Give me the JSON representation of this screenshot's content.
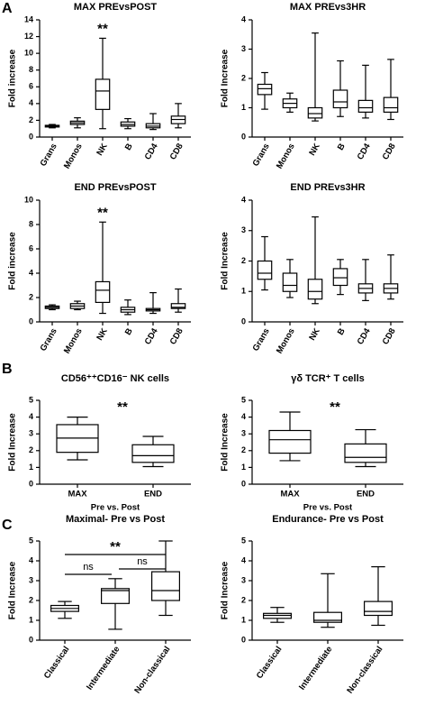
{
  "chart_data": [
    {
      "type": "box",
      "panel": "A",
      "title": "MAX PREvsPOST",
      "ylabel": "Fold increase",
      "categories": [
        "Grans",
        "Monos",
        "NK",
        "B",
        "CD4",
        "CD8"
      ],
      "boxes": [
        {
          "min": 1.1,
          "q1": 1.2,
          "median": 1.3,
          "q3": 1.4,
          "max": 1.5
        },
        {
          "min": 1.1,
          "q1": 1.5,
          "median": 1.7,
          "q3": 1.9,
          "max": 2.3
        },
        {
          "min": 1.0,
          "q1": 3.3,
          "median": 5.5,
          "q3": 6.9,
          "max": 11.8
        },
        {
          "min": 1.0,
          "q1": 1.3,
          "median": 1.5,
          "q3": 1.8,
          "max": 2.2
        },
        {
          "min": 0.9,
          "q1": 1.1,
          "median": 1.3,
          "q3": 1.6,
          "max": 2.8
        },
        {
          "min": 1.1,
          "q1": 1.6,
          "median": 2.1,
          "q3": 2.5,
          "max": 4.0
        }
      ],
      "ylim": [
        0,
        14
      ],
      "yticks": [
        0,
        2,
        4,
        6,
        8,
        10,
        12,
        14
      ],
      "annotations": [
        {
          "text": "**",
          "category": "NK"
        }
      ]
    },
    {
      "type": "box",
      "title": "MAX PREvs3HR",
      "ylabel": "Fold Increase",
      "categories": [
        "Grans",
        "Monos",
        "NK",
        "B",
        "CD4",
        "CD8"
      ],
      "boxes": [
        {
          "min": 0.95,
          "q1": 1.45,
          "median": 1.65,
          "q3": 1.8,
          "max": 2.2
        },
        {
          "min": 0.85,
          "q1": 1.0,
          "median": 1.15,
          "q3": 1.3,
          "max": 1.5
        },
        {
          "min": 0.55,
          "q1": 0.65,
          "median": 0.8,
          "q3": 1.0,
          "max": 3.55
        },
        {
          "min": 0.7,
          "q1": 1.0,
          "median": 1.2,
          "q3": 1.6,
          "max": 2.6
        },
        {
          "min": 0.65,
          "q1": 0.85,
          "median": 1.0,
          "q3": 1.25,
          "max": 2.45
        },
        {
          "min": 0.6,
          "q1": 0.85,
          "median": 1.0,
          "q3": 1.35,
          "max": 2.65
        }
      ],
      "ylim": [
        0,
        4
      ],
      "yticks": [
        0,
        1,
        2,
        3,
        4
      ]
    },
    {
      "type": "box",
      "title": "END PREvsPOST",
      "ylabel": "Fold increase",
      "categories": [
        "Grans",
        "Monos",
        "NK",
        "B",
        "CD4",
        "CD8"
      ],
      "boxes": [
        {
          "min": 1.0,
          "q1": 1.1,
          "median": 1.2,
          "q3": 1.3,
          "max": 1.4
        },
        {
          "min": 1.0,
          "q1": 1.1,
          "median": 1.3,
          "q3": 1.5,
          "max": 1.7
        },
        {
          "min": 0.7,
          "q1": 1.6,
          "median": 2.6,
          "q3": 3.3,
          "max": 8.2
        },
        {
          "min": 0.6,
          "q1": 0.8,
          "median": 1.0,
          "q3": 1.2,
          "max": 1.8
        },
        {
          "min": 0.7,
          "q1": 0.9,
          "median": 1.0,
          "q3": 1.1,
          "max": 2.4
        },
        {
          "min": 0.8,
          "q1": 1.1,
          "median": 1.2,
          "q3": 1.5,
          "max": 2.7
        }
      ],
      "ylim": [
        0,
        10
      ],
      "yticks": [
        0,
        2,
        4,
        6,
        8,
        10
      ],
      "annotations": [
        {
          "text": "**",
          "category": "NK"
        }
      ]
    },
    {
      "type": "box",
      "title": "END PREvs3HR",
      "ylabel": "Fold Increase",
      "categories": [
        "Grans",
        "Monos",
        "NK",
        "B",
        "CD4",
        "CD8"
      ],
      "boxes": [
        {
          "min": 1.05,
          "q1": 1.4,
          "median": 1.6,
          "q3": 2.0,
          "max": 2.8
        },
        {
          "min": 0.8,
          "q1": 1.0,
          "median": 1.2,
          "q3": 1.6,
          "max": 2.05
        },
        {
          "min": 0.6,
          "q1": 0.75,
          "median": 1.0,
          "q3": 1.4,
          "max": 3.45
        },
        {
          "min": 0.9,
          "q1": 1.2,
          "median": 1.45,
          "q3": 1.75,
          "max": 2.05
        },
        {
          "min": 0.7,
          "q1": 0.95,
          "median": 1.1,
          "q3": 1.25,
          "max": 2.05
        },
        {
          "min": 0.75,
          "q1": 0.95,
          "median": 1.1,
          "q3": 1.25,
          "max": 2.2
        }
      ],
      "ylim": [
        0,
        4
      ],
      "yticks": [
        0,
        1,
        2,
        3,
        4
      ]
    },
    {
      "type": "box",
      "panel": "B",
      "title": "CD56⁺⁺CD16⁻ NK cells",
      "ylabel": "Fold Increase",
      "xlabel": "Pre vs. Post",
      "categories": [
        "MAX",
        "END"
      ],
      "boxes": [
        {
          "min": 1.45,
          "q1": 1.9,
          "median": 2.75,
          "q3": 3.55,
          "max": 4.0
        },
        {
          "min": 1.05,
          "q1": 1.3,
          "median": 1.7,
          "q3": 2.35,
          "max": 2.85
        }
      ],
      "ylim": [
        0,
        5
      ],
      "yticks": [
        0,
        1,
        2,
        3,
        4,
        5
      ],
      "annotations": [
        {
          "text": "**"
        }
      ]
    },
    {
      "type": "box",
      "title": "γδ TCR⁺ T cells",
      "ylabel": "Fold Increase",
      "xlabel": "Pre vs. Post",
      "categories": [
        "MAX",
        "END"
      ],
      "boxes": [
        {
          "min": 1.4,
          "q1": 1.85,
          "median": 2.65,
          "q3": 3.2,
          "max": 4.3
        },
        {
          "min": 1.05,
          "q1": 1.3,
          "median": 1.6,
          "q3": 2.4,
          "max": 3.25
        }
      ],
      "ylim": [
        0,
        5
      ],
      "yticks": [
        0,
        1,
        2,
        3,
        4,
        5
      ],
      "annotations": [
        {
          "text": "**"
        }
      ]
    },
    {
      "type": "box",
      "panel": "C",
      "title": "Maximal- Pre vs Post",
      "ylabel": "Fold Increase",
      "categories": [
        "Classical",
        "Intermediate",
        "Non-classical"
      ],
      "boxes": [
        {
          "min": 1.1,
          "q1": 1.45,
          "median": 1.6,
          "q3": 1.75,
          "max": 1.95
        },
        {
          "min": 0.55,
          "q1": 1.85,
          "median": 2.5,
          "q3": 2.6,
          "max": 3.1
        },
        {
          "min": 1.25,
          "q1": 2.0,
          "median": 2.5,
          "q3": 3.45,
          "max": 5.0
        }
      ],
      "ylim": [
        0,
        5
      ],
      "yticks": [
        0,
        1,
        2,
        3,
        4,
        5
      ],
      "annotations": [
        {
          "text": "**",
          "from": "Classical",
          "to": "Non-classical"
        },
        {
          "text": "ns",
          "from": "Classical",
          "to": "Intermediate"
        },
        {
          "text": "ns",
          "from": "Intermediate",
          "to": "Non-classical"
        }
      ]
    },
    {
      "type": "box",
      "title": "Endurance- Pre vs Post",
      "ylabel": "Fold Increase",
      "categories": [
        "Classical",
        "Intermediate",
        "Non-classical"
      ],
      "boxes": [
        {
          "min": 0.9,
          "q1": 1.1,
          "median": 1.25,
          "q3": 1.35,
          "max": 1.65
        },
        {
          "min": 0.65,
          "q1": 0.9,
          "median": 1.0,
          "q3": 1.4,
          "max": 3.35
        },
        {
          "min": 0.75,
          "q1": 1.25,
          "median": 1.45,
          "q3": 1.95,
          "max": 3.7
        }
      ],
      "ylim": [
        0,
        5
      ],
      "yticks": [
        0,
        1,
        2,
        3,
        4,
        5
      ]
    }
  ]
}
